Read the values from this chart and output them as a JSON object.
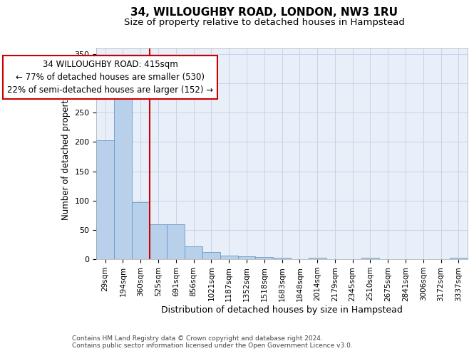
{
  "title1": "34, WILLOUGHBY ROAD, LONDON, NW3 1RU",
  "title2": "Size of property relative to detached houses in Hampstead",
  "xlabel": "Distribution of detached houses by size in Hampstead",
  "ylabel": "Number of detached properties",
  "bar_labels": [
    "29sqm",
    "194sqm",
    "360sqm",
    "525sqm",
    "691sqm",
    "856sqm",
    "1021sqm",
    "1187sqm",
    "1352sqm",
    "1518sqm",
    "1683sqm",
    "1848sqm",
    "2014sqm",
    "2179sqm",
    "2345sqm",
    "2510sqm",
    "2675sqm",
    "2841sqm",
    "3006sqm",
    "3172sqm",
    "3337sqm"
  ],
  "bar_values": [
    203,
    291,
    97,
    59,
    59,
    22,
    12,
    6,
    5,
    4,
    2,
    0,
    3,
    0,
    0,
    3,
    0,
    0,
    0,
    0,
    3
  ],
  "bar_color": "#b8d0ea",
  "bar_edge_color": "#6699cc",
  "background_color": "#e8eff8",
  "grid_color": "#c5d4e8",
  "vline_x": 2.5,
  "vline_color": "#cc0000",
  "annotation_text": "34 WILLOUGHBY ROAD: 415sqm\n← 77% of detached houses are smaller (530)\n22% of semi-detached houses are larger (152) →",
  "annotation_box_color": "#ffffff",
  "annotation_box_edge": "#cc0000",
  "ylim": [
    0,
    360
  ],
  "yticks": [
    0,
    50,
    100,
    150,
    200,
    250,
    300,
    350
  ],
  "footnote1": "Contains HM Land Registry data © Crown copyright and database right 2024.",
  "footnote2": "Contains public sector information licensed under the Open Government Licence v3.0.",
  "title1_fontsize": 11,
  "title2_fontsize": 9.5,
  "ylabel_fontsize": 8.5,
  "xlabel_fontsize": 9,
  "annot_fontsize": 8.5,
  "footnote_fontsize": 6.5
}
